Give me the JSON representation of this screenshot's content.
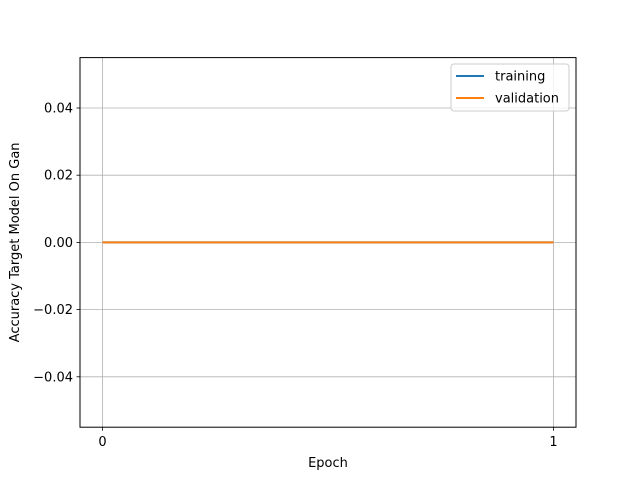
{
  "chart_data": {
    "type": "line",
    "title": "",
    "xlabel": "Epoch",
    "ylabel": "Accuracy Target Model On Gan",
    "x": [
      0,
      1
    ],
    "xlim": [
      -0.05,
      1.05
    ],
    "ylim": [
      -0.055,
      0.055
    ],
    "xticks": [
      0,
      1
    ],
    "xtick_labels": [
      "0",
      "1"
    ],
    "yticks": [
      -0.04,
      -0.02,
      0.0,
      0.02,
      0.04
    ],
    "ytick_labels": [
      "−0.04",
      "−0.02",
      "0.00",
      "0.02",
      "0.04"
    ],
    "grid": true,
    "legend_position": "top-right",
    "series": [
      {
        "name": "training",
        "values": [
          0,
          0
        ],
        "color": "#1f77b4"
      },
      {
        "name": "validation",
        "values": [
          0,
          0
        ],
        "color": "#ff7f0e"
      }
    ]
  }
}
